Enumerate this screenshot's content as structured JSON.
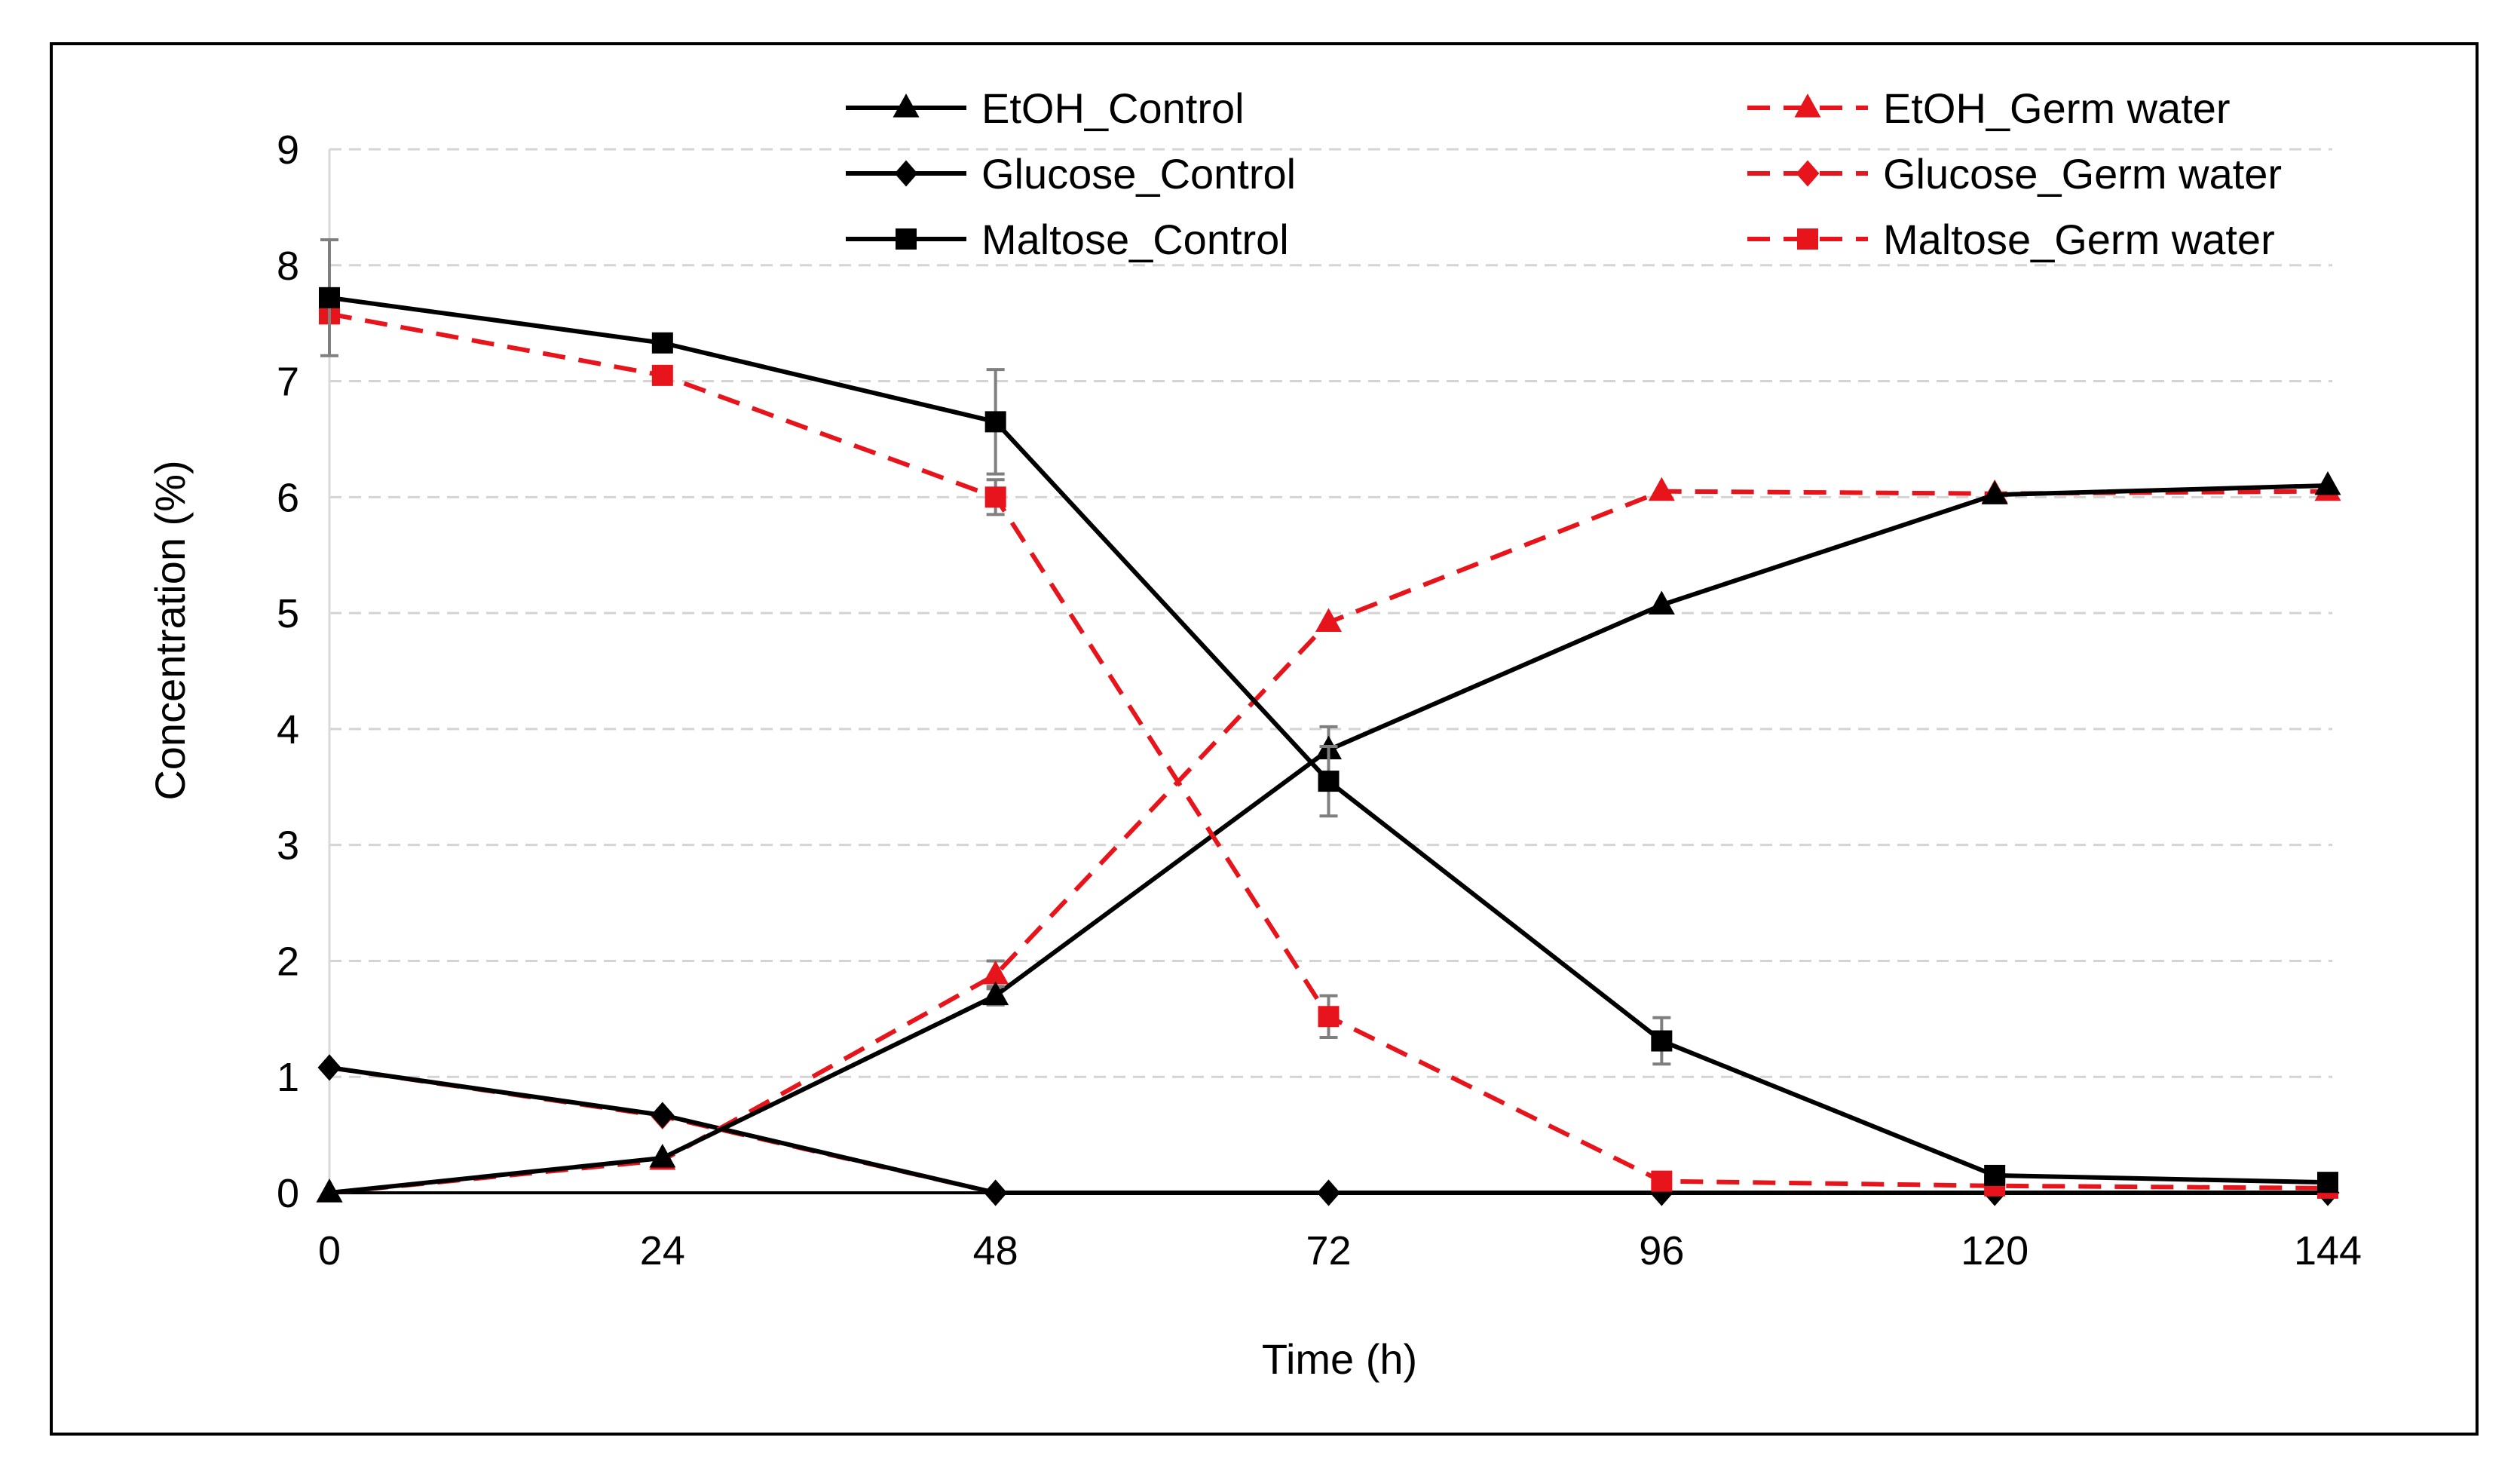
{
  "chart_data": {
    "type": "line",
    "title": "",
    "xlabel": "Time (h)",
    "ylabel": "Concentration (%)",
    "x": [
      0,
      24,
      48,
      72,
      96,
      120,
      144
    ],
    "x_ticks": [
      "0",
      "24",
      "48",
      "72",
      "96",
      "120",
      "144"
    ],
    "y_ticks": [
      "0",
      "1",
      "2",
      "3",
      "4",
      "5",
      "6",
      "7",
      "8",
      "9"
    ],
    "xlim": [
      0,
      144
    ],
    "ylim": [
      0,
      9
    ],
    "grid": "horizontal dashed",
    "legend_position": "top",
    "series": [
      {
        "name": "EtOH_Control",
        "color": "#000000",
        "dash": "solid",
        "marker": "triangle",
        "values": [
          0.0,
          0.3,
          1.7,
          3.82,
          5.07,
          6.02,
          6.1
        ],
        "error": [
          0,
          0,
          0.08,
          0.2,
          0,
          0,
          0
        ]
      },
      {
        "name": "Glucose_Control",
        "color": "#000000",
        "dash": "solid",
        "marker": "diamond",
        "values": [
          1.08,
          0.67,
          0.0,
          0.0,
          0.0,
          0.0,
          0.0
        ],
        "error": [
          0,
          0,
          0,
          0,
          0,
          0,
          0
        ]
      },
      {
        "name": "Maltose_Control",
        "color": "#000000",
        "dash": "solid",
        "marker": "square",
        "values": [
          7.72,
          7.33,
          6.65,
          3.55,
          1.31,
          0.15,
          0.09
        ],
        "error": [
          0.5,
          0,
          0.45,
          0.3,
          0.2,
          0,
          0
        ]
      },
      {
        "name": "EtOH_Germ water",
        "color": "#e8141b",
        "dash": "dashed",
        "marker": "triangle",
        "values": [
          0.0,
          0.28,
          1.88,
          4.92,
          6.05,
          6.03,
          6.05
        ],
        "error": [
          0,
          0,
          0.12,
          0,
          0,
          0,
          0
        ]
      },
      {
        "name": "Glucose_Germ water",
        "color": "#e8141b",
        "dash": "dashed",
        "marker": "diamond",
        "values": [
          1.08,
          0.66,
          0.0,
          0.0,
          0.0,
          0.0,
          0.0
        ],
        "error": [
          0,
          0,
          0,
          0,
          0,
          0,
          0
        ]
      },
      {
        "name": "Maltose_Germ water",
        "color": "#e8141b",
        "dash": "dashed",
        "marker": "square",
        "values": [
          7.58,
          7.05,
          6.0,
          1.52,
          0.1,
          0.06,
          0.04
        ],
        "error": [
          0,
          0,
          0.15,
          0.18,
          0,
          0,
          0
        ]
      }
    ]
  }
}
